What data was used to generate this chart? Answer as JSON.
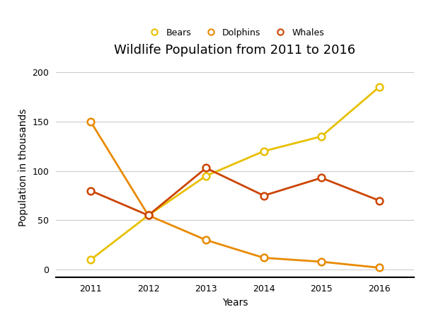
{
  "title": "Wildlife Population from 2011 to 2016",
  "xlabel": "Years",
  "ylabel": "Population in thousands",
  "years": [
    2011,
    2012,
    2013,
    2014,
    2015,
    2016
  ],
  "series": {
    "Bears": {
      "values": [
        10,
        55,
        95,
        120,
        135,
        185
      ],
      "color": "#E8C000",
      "linewidth": 2.0
    },
    "Dolphins": {
      "values": [
        150,
        55,
        30,
        12,
        8,
        2
      ],
      "color": "#E88A00",
      "linewidth": 2.0
    },
    "Whales": {
      "values": [
        80,
        55,
        103,
        75,
        93,
        70
      ],
      "color": "#CC4400",
      "linewidth": 2.0
    }
  },
  "ylim": [
    -8,
    215
  ],
  "yticks": [
    0,
    50,
    100,
    150,
    200
  ],
  "background_color": "#ffffff",
  "grid_color": "#cccccc",
  "title_fontsize": 13,
  "axis_label_fontsize": 10,
  "tick_fontsize": 9,
  "legend_fontsize": 9,
  "marker_size": 7
}
